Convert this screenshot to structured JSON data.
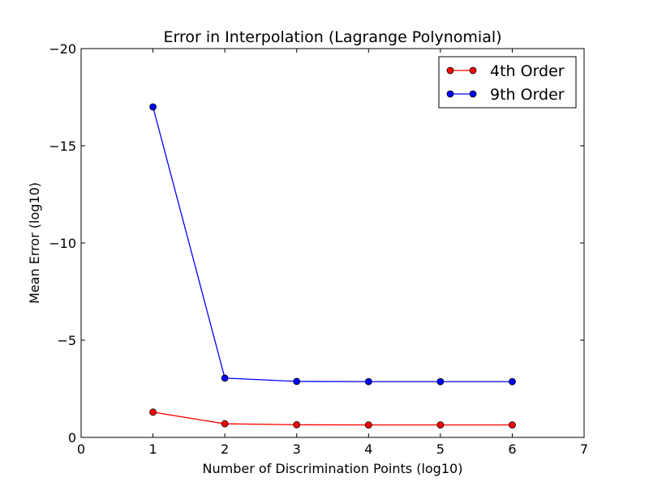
{
  "chart_data": {
    "type": "line",
    "title": "Error in Interpolation (Lagrange Polynomial)",
    "xlabel": "Number of Discrimination Points (log10)",
    "ylabel": "Mean Error (log10)",
    "xlim": [
      0,
      7
    ],
    "ylim": [
      0,
      -20
    ],
    "y_inverted": true,
    "x_ticks": [
      0,
      1,
      2,
      3,
      4,
      5,
      6,
      7
    ],
    "x_tick_labels": [
      "0",
      "1",
      "2",
      "3",
      "4",
      "5",
      "6",
      "7"
    ],
    "y_ticks": [
      -20,
      -15,
      -10,
      -5,
      0
    ],
    "y_tick_labels": [
      "−20",
      "−15",
      "−10",
      "−5",
      "0"
    ],
    "grid": false,
    "legend_position": "top-right",
    "x": [
      1,
      2,
      3,
      4,
      5,
      6
    ],
    "series": [
      {
        "name": "4th Order",
        "color": "#ff0000",
        "values": [
          -1.3,
          -0.7,
          -0.65,
          -0.64,
          -0.64,
          -0.64
        ]
      },
      {
        "name": "9th Order",
        "color": "#0000ff",
        "values": [
          -17.0,
          -3.05,
          -2.88,
          -2.87,
          -2.87,
          -2.87
        ]
      }
    ]
  }
}
